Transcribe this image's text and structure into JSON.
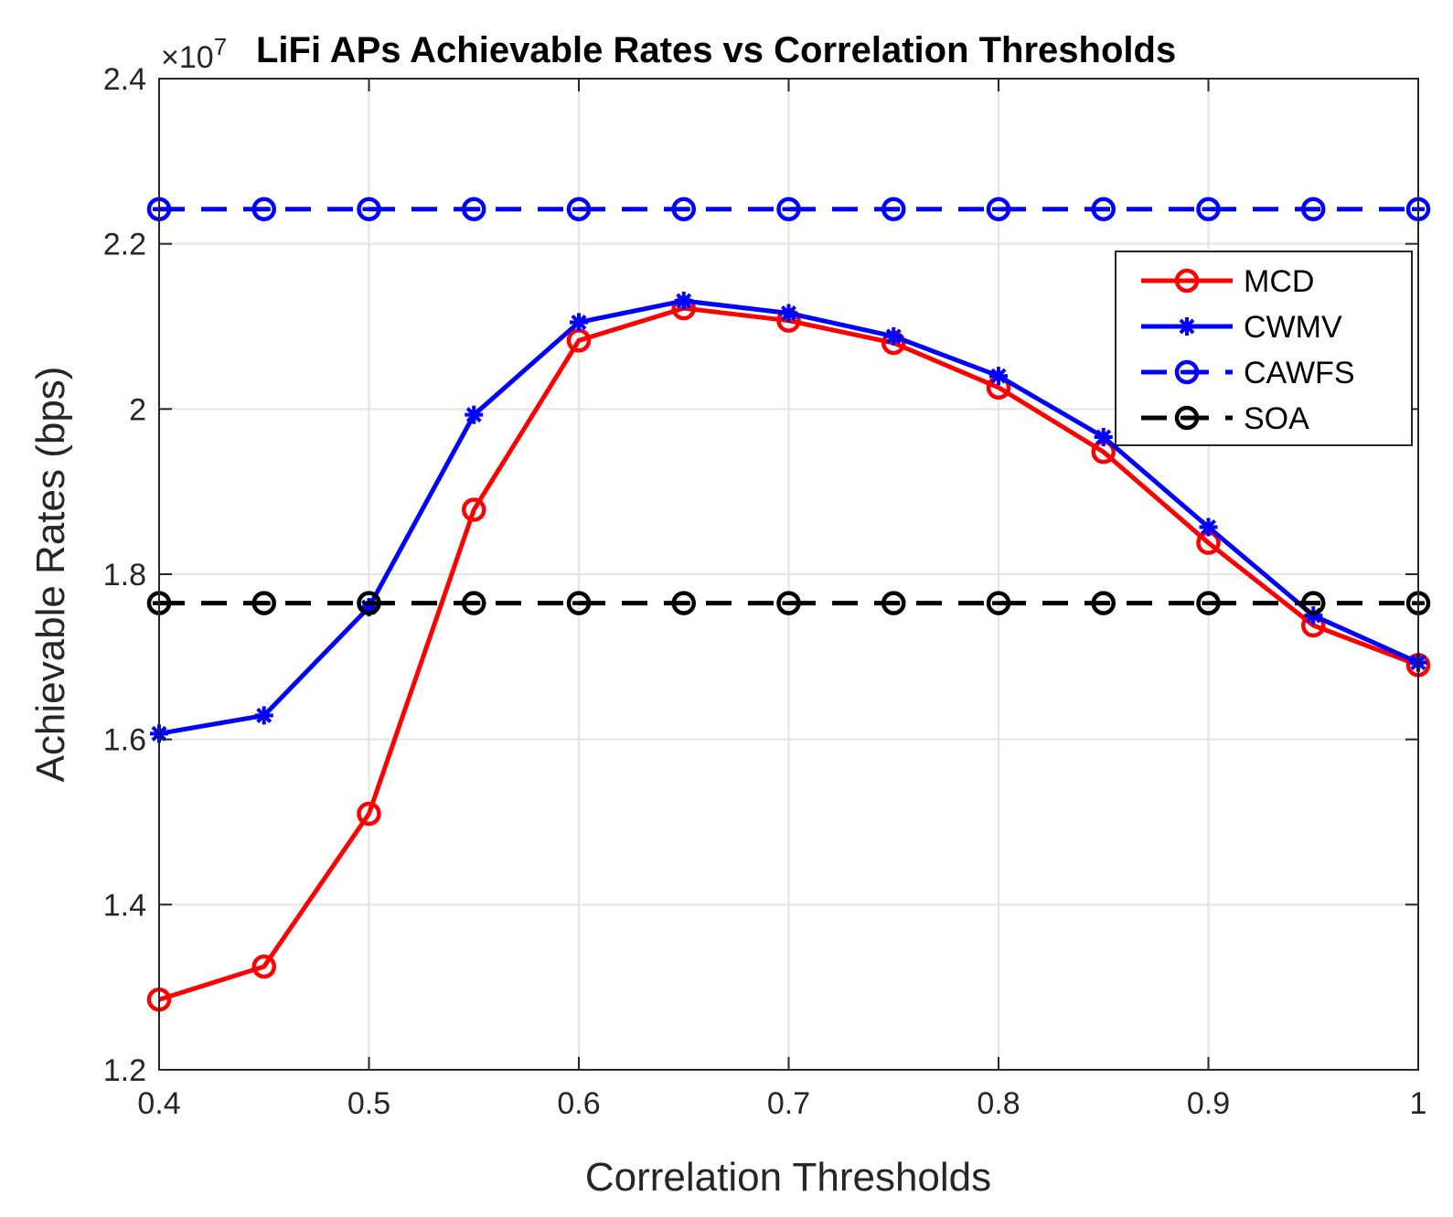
{
  "chart_data": {
    "type": "line",
    "title": "LiFi APs Achievable Rates vs Correlation Thresholds",
    "xlabel": "Correlation Thresholds",
    "ylabel": "Achievable Rates (bps)",
    "y_exponent_label": "×10",
    "y_exponent_power": "7",
    "xlim": [
      0.4,
      1
    ],
    "ylim": [
      1.2,
      2.4
    ],
    "x_ticks": [
      "0.4",
      "0.5",
      "0.6",
      "0.7",
      "0.8",
      "0.9",
      "1"
    ],
    "x_tick_values": [
      0.4,
      0.5,
      0.6,
      0.7,
      0.8,
      0.9,
      1.0
    ],
    "y_ticks": [
      "1.2",
      "1.4",
      "1.6",
      "1.8",
      "2",
      "2.2",
      "2.4"
    ],
    "y_tick_values": [
      1.2,
      1.4,
      1.6,
      1.8,
      2.0,
      2.2,
      2.4
    ],
    "grid": true,
    "legend_position": "top-right",
    "x": [
      0.4,
      0.45,
      0.5,
      0.55,
      0.6,
      0.65,
      0.7,
      0.75,
      0.8,
      0.85,
      0.9,
      0.95,
      1.0
    ],
    "series": [
      {
        "name": "MCD",
        "color": "#ff0000",
        "line_style": "solid",
        "marker": "circle",
        "values": [
          1.285,
          1.325,
          1.51,
          1.878,
          2.083,
          2.122,
          2.107,
          2.08,
          2.026,
          1.948,
          1.838,
          1.738,
          1.69
        ]
      },
      {
        "name": "CWMV",
        "color": "#0000ff",
        "line_style": "solid",
        "marker": "asterisk",
        "values": [
          1.607,
          1.629,
          1.76,
          1.993,
          2.105,
          2.131,
          2.116,
          2.088,
          2.04,
          1.966,
          1.857,
          1.75,
          1.693
        ]
      },
      {
        "name": "CAWFS",
        "color": "#0000ff",
        "line_style": "dashed",
        "marker": "circle-dash",
        "values": [
          2.242,
          2.242,
          2.242,
          2.242,
          2.242,
          2.242,
          2.242,
          2.242,
          2.242,
          2.242,
          2.242,
          2.242,
          2.242
        ]
      },
      {
        "name": "SOA",
        "color": "#000000",
        "line_style": "dashed",
        "marker": "circle-dash",
        "values": [
          1.765,
          1.765,
          1.765,
          1.765,
          1.765,
          1.765,
          1.765,
          1.765,
          1.765,
          1.765,
          1.765,
          1.765,
          1.765
        ]
      }
    ]
  }
}
